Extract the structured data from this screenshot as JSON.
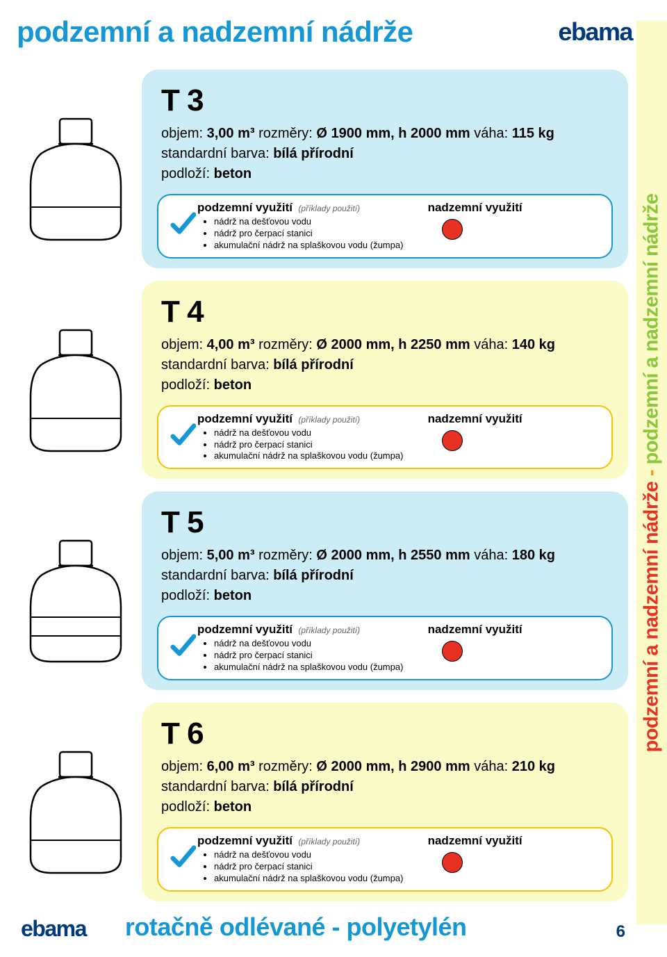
{
  "header": {
    "title": "podzemní a nadzemní nádrže",
    "brand": "ebama"
  },
  "colors": {
    "title_color": "#1597d5",
    "brand_color": "#003a7a",
    "bg_blue": "#ccecf6",
    "bg_yellow": "#fafbc7",
    "border_blue": "#1597d5",
    "border_yellow": "#f5c400",
    "dot_color": "#e73123",
    "check_color": "#1597d5"
  },
  "labels": {
    "objem": "objem:",
    "rozmery": "rozměry:",
    "vaha": "váha:",
    "std_barva": "standardní barva:",
    "podlozi": "podloží:",
    "podzemni": "podzemní využití",
    "priklad": "(příklady použití)",
    "nadzemni": "nadzemní využití"
  },
  "bullets": [
    "nádrž na dešťovou vodu",
    "nádrž pro čerpací stanici",
    "akumulační nádrž na splaškovou vodu (žumpa)"
  ],
  "products": [
    {
      "model": "T 3",
      "bg": "bg-blue",
      "objem": "3,00 m³",
      "rozmery": "Ø 1900 mm, h 2000 mm",
      "vaha": "115 kg",
      "barva": "bílá přírodní",
      "podlozi": "beton",
      "tank_lines": 1
    },
    {
      "model": "T 4",
      "bg": "bg-yellow",
      "objem": "4,00 m³",
      "rozmery": "Ø 2000 mm, h 2250 mm",
      "vaha": "140 kg",
      "barva": "bílá přírodní",
      "podlozi": "beton",
      "tank_lines": 1
    },
    {
      "model": "T 5",
      "bg": "bg-blue",
      "objem": "5,00 m³",
      "rozmery": "Ø 2000 mm, h 2550 mm",
      "vaha": "180 kg",
      "barva": "bílá přírodní",
      "podlozi": "beton",
      "tank_lines": 2
    },
    {
      "model": "T 6",
      "bg": "bg-yellow",
      "objem": "6,00 m³",
      "rozmery": "Ø 2000 mm, h 2900 mm",
      "vaha": "210 kg",
      "barva": "bílá přírodní",
      "podlozi": "beton",
      "tank_lines": 1
    }
  ],
  "footer": {
    "brand": "ebama",
    "title": "rotačně odlévané - polyetylén",
    "page": "6"
  },
  "side_tab": {
    "seg1": "podzemní a nadzemní nádrže",
    "sep": " - ",
    "seg2": "podzemní a nadzemní nádrže"
  }
}
